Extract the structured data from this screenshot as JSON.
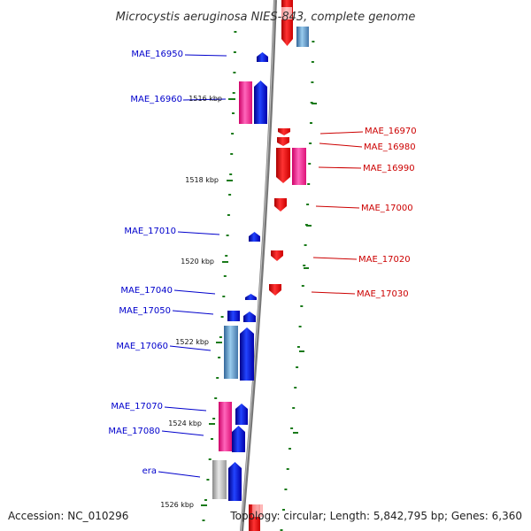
{
  "title": "Microcystis aeruginosa NIES-843, complete genome",
  "footer": {
    "accession": "Accession: NC_010296",
    "summary": "Topology: circular; Length: 5,842,795 bp; Genes: 6,360"
  },
  "colors": {
    "minus_strand": "#0000ee",
    "plus_strand": "#ee0000",
    "rna_magenta": "#ee2288",
    "pale_blue": "#5588bb",
    "gray_gene": "#aaaaaa",
    "tick_green": "#1a7a1a",
    "backbone": "#888888"
  },
  "kbp_labels": [
    "1516 kbp",
    "1518 kbp",
    "1520 kbp",
    "1522 kbp",
    "1524 kbp",
    "1526 kbp"
  ],
  "genes": [
    {
      "name": "MAE_16950",
      "strand": "minus"
    },
    {
      "name": "MAE_16960",
      "strand": "minus"
    },
    {
      "name": "MAE_16970",
      "strand": "plus"
    },
    {
      "name": "MAE_16980",
      "strand": "plus"
    },
    {
      "name": "MAE_16990",
      "strand": "plus"
    },
    {
      "name": "MAE_17000",
      "strand": "plus"
    },
    {
      "name": "MAE_17010",
      "strand": "minus"
    },
    {
      "name": "MAE_17020",
      "strand": "plus"
    },
    {
      "name": "MAE_17030",
      "strand": "plus"
    },
    {
      "name": "MAE_17040",
      "strand": "minus"
    },
    {
      "name": "MAE_17050",
      "strand": "minus"
    },
    {
      "name": "MAE_17060",
      "strand": "minus"
    },
    {
      "name": "MAE_17070",
      "strand": "minus"
    },
    {
      "name": "MAE_17080",
      "strand": "minus"
    },
    {
      "name": "era",
      "strand": "minus"
    }
  ]
}
